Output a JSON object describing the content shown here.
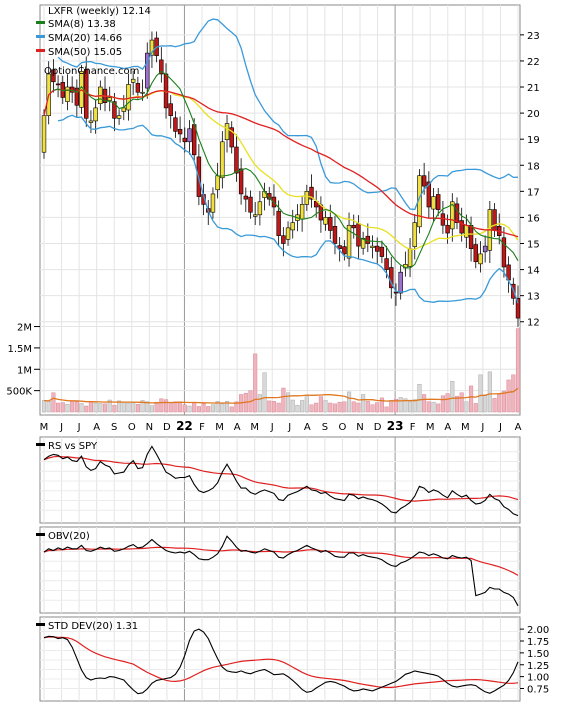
{
  "chart_data": [
    {
      "type": "candlestick",
      "title": "LXFR (weekly) 12.14",
      "watermark": "OptionChance.com",
      "legend_placement": "top-left",
      "legend": [
        {
          "label": "SMA(8) 13.38",
          "color": "#1a7f1a"
        },
        {
          "label": "SMA(20) 14.66",
          "color": "#3a9ad9"
        },
        {
          "label": "SMA(50) 15.05",
          "color": "#e02020"
        }
      ],
      "y_range": [
        11.3,
        23.8
      ],
      "y_ticks": [
        "12",
        "13",
        "14",
        "15",
        "16",
        "17",
        "18",
        "19",
        "20",
        "21",
        "22",
        "23"
      ],
      "volume_ticks": [
        "500K",
        "1M",
        "1.5M",
        "2M"
      ],
      "volume_range": [
        0,
        2200000
      ],
      "x_ticks": [
        "M",
        "J",
        "J",
        "A",
        "S",
        "O",
        "N",
        "D",
        "22",
        "F",
        "M",
        "A",
        "M",
        "J",
        "J",
        "A",
        "S",
        "O",
        "N",
        "D",
        "23",
        "F",
        "M",
        "A",
        "M",
        "J",
        "J",
        "A"
      ],
      "bollinger_color": "#3a9ad9",
      "sma8_color": "#1a7f1a",
      "sma20_color": "#e8e020",
      "sma50_color": "#e02020",
      "volume_avg_color": "#e07820",
      "up_color": "#f0e040",
      "down_color": "#c01818",
      "alt_up_color": "#a070d0",
      "close_series": [
        19.9,
        21.5,
        21.2,
        21.1,
        20.6,
        21.0,
        20.8,
        20.3,
        21.6,
        19.8,
        19.7,
        20.2,
        21.0,
        20.4,
        20.6,
        19.8,
        19.9,
        20.2,
        21.1,
        21.3,
        20.8,
        20.8,
        22.3,
        22.8,
        22.2,
        21.5,
        20.2,
        19.9,
        19.3,
        19.2,
        18.9,
        19.4,
        18.4,
        16.8,
        16.5,
        16.2,
        16.9,
        17.6,
        18.9,
        19.6,
        18.7,
        17.7,
        16.9,
        16.7,
        16.2,
        16.1,
        16.6,
        17.0,
        16.7,
        16.4,
        15.3,
        15.0,
        15.6,
        15.8,
        16.1,
        16.5,
        17.0,
        16.7,
        16.4,
        15.9,
        16.0,
        15.5,
        15.0,
        14.8,
        14.6,
        15.7,
        15.6,
        14.9,
        15.2,
        15.0,
        14.9,
        14.7,
        14.5,
        14.0,
        13.3,
        13.1,
        13.9,
        14.2,
        14.8,
        15.8,
        17.6,
        17.2,
        16.4,
        16.8,
        16.3,
        15.7,
        15.4,
        16.6,
        15.8,
        15.4,
        15.7,
        14.8,
        14.3,
        14.6,
        14.9,
        16.3,
        15.5,
        15.3,
        14.1,
        13.6,
        12.9,
        12.14
      ],
      "volume_series": [
        0.27,
        0.25,
        0.45,
        0.21,
        0.22,
        0.18,
        0.26,
        0.24,
        0.2,
        0.14,
        0.24,
        0.21,
        0.2,
        0.19,
        0.28,
        0.16,
        0.26,
        0.23,
        0.21,
        0.22,
        0.18,
        0.27,
        0.24,
        0.15,
        0.23,
        0.31,
        0.29,
        0.22,
        0.24,
        0.24,
        0.17,
        0.14,
        0.23,
        0.13,
        0.19,
        0.13,
        0.17,
        0.25,
        0.19,
        0.25,
        0.12,
        0.24,
        0.41,
        0.44,
        0.5,
        1.36,
        0.41,
        0.92,
        0.26,
        0.25,
        0.21,
        0.56,
        0.45,
        0.28,
        0.16,
        0.27,
        0.39,
        0.17,
        0.21,
        0.36,
        0.27,
        0.21,
        0.19,
        0.23,
        0.24,
        0.47,
        0.24,
        0.21,
        0.41,
        0.25,
        0.17,
        0.22,
        0.33,
        0.12,
        0.27,
        0.3,
        0.34,
        0.31,
        0.24,
        0.29,
        0.65,
        0.41,
        0.24,
        0.23,
        0.19,
        0.38,
        0.43,
        0.72,
        0.37,
        0.45,
        0.24,
        0.61,
        0.2,
        0.87,
        0.38,
        0.94,
        0.32,
        0.41,
        0.49,
        0.75,
        0.87,
        1.95
      ]
    },
    {
      "type": "line",
      "title": "RS vs SPY",
      "series": [
        {
          "values": [
            0.72,
            0.76,
            0.78,
            0.77,
            0.73,
            0.75,
            0.71,
            0.7,
            0.76,
            0.64,
            0.6,
            0.62,
            0.7,
            0.66,
            0.64,
            0.56,
            0.57,
            0.58,
            0.66,
            0.71,
            0.62,
            0.63,
            0.78,
            0.87,
            0.78,
            0.68,
            0.58,
            0.55,
            0.51,
            0.52,
            0.52,
            0.54,
            0.44,
            0.37,
            0.35,
            0.37,
            0.4,
            0.46,
            0.58,
            0.67,
            0.58,
            0.48,
            0.4,
            0.4,
            0.35,
            0.33,
            0.36,
            0.38,
            0.36,
            0.34,
            0.27,
            0.26,
            0.32,
            0.34,
            0.36,
            0.39,
            0.42,
            0.38,
            0.37,
            0.34,
            0.35,
            0.31,
            0.28,
            0.27,
            0.26,
            0.33,
            0.32,
            0.28,
            0.3,
            0.28,
            0.27,
            0.25,
            0.22,
            0.18,
            0.13,
            0.12,
            0.17,
            0.2,
            0.24,
            0.31,
            0.42,
            0.4,
            0.35,
            0.38,
            0.36,
            0.32,
            0.29,
            0.37,
            0.33,
            0.3,
            0.32,
            0.26,
            0.22,
            0.23,
            0.26,
            0.33,
            0.28,
            0.26,
            0.19,
            0.16,
            0.11,
            0.09
          ],
          "color": "#000000"
        },
        {
          "values": "sma",
          "color": "#e02020"
        }
      ]
    },
    {
      "type": "line",
      "title": "OBV(20)",
      "series": [
        {
          "values": [
            0.56,
            0.6,
            0.58,
            0.61,
            0.59,
            0.62,
            0.6,
            0.6,
            0.64,
            0.58,
            0.57,
            0.59,
            0.62,
            0.6,
            0.61,
            0.57,
            0.58,
            0.6,
            0.63,
            0.65,
            0.61,
            0.62,
            0.66,
            0.71,
            0.66,
            0.62,
            0.58,
            0.56,
            0.55,
            0.56,
            0.55,
            0.57,
            0.53,
            0.48,
            0.47,
            0.47,
            0.5,
            0.54,
            0.63,
            0.75,
            0.69,
            0.62,
            0.57,
            0.58,
            0.56,
            0.55,
            0.57,
            0.6,
            0.58,
            0.56,
            0.5,
            0.49,
            0.53,
            0.56,
            0.58,
            0.61,
            0.64,
            0.61,
            0.59,
            0.56,
            0.58,
            0.55,
            0.51,
            0.5,
            0.5,
            0.55,
            0.55,
            0.51,
            0.53,
            0.51,
            0.5,
            0.49,
            0.47,
            0.43,
            0.4,
            0.39,
            0.43,
            0.45,
            0.48,
            0.52,
            0.56,
            0.55,
            0.52,
            0.54,
            0.52,
            0.49,
            0.48,
            0.52,
            0.5,
            0.49,
            0.5,
            0.46,
            0.04,
            0.06,
            0.08,
            0.14,
            0.12,
            0.12,
            0.08,
            0.06,
            0.02,
            -0.08
          ],
          "color": "#000000"
        },
        {
          "values": "sma",
          "color": "#e02020"
        }
      ]
    },
    {
      "type": "line",
      "title": "STD DEV(20) 1.31",
      "y_range": [
        0.55,
        2.15
      ],
      "y_ticks": [
        "0.75",
        "1.00",
        "1.25",
        "1.50",
        "1.75",
        "2.00"
      ],
      "series": [
        {
          "values": [
            1.82,
            1.85,
            1.84,
            1.8,
            1.82,
            1.78,
            1.62,
            1.38,
            1.14,
            0.98,
            0.93,
            0.96,
            0.97,
            0.96,
            1.0,
            0.99,
            0.96,
            0.93,
            0.82,
            0.72,
            0.64,
            0.66,
            0.74,
            0.86,
            0.92,
            0.94,
            0.96,
            0.98,
            1.05,
            1.2,
            1.45,
            1.76,
            1.96,
            2.0,
            1.94,
            1.8,
            1.58,
            1.38,
            1.2,
            1.12,
            1.1,
            1.09,
            1.12,
            1.08,
            1.06,
            1.1,
            1.13,
            1.15,
            1.1,
            1.04,
            1.05,
            1.06,
            1.0,
            0.92,
            0.83,
            0.73,
            0.67,
            0.69,
            0.76,
            0.82,
            0.88,
            0.9,
            0.88,
            0.84,
            0.8,
            0.74,
            0.7,
            0.71,
            0.74,
            0.72,
            0.7,
            0.74,
            0.78,
            0.82,
            0.86,
            0.9,
            0.97,
            1.05,
            1.08,
            1.12,
            1.1,
            1.08,
            1.06,
            1.04,
            1.01,
            0.94,
            0.86,
            0.8,
            0.78,
            0.8,
            0.82,
            0.83,
            0.81,
            0.74,
            0.68,
            0.65,
            0.7,
            0.76,
            0.82,
            0.92,
            1.08,
            1.31
          ],
          "color": "#000000"
        },
        {
          "values": "sma",
          "color": "#e02020"
        }
      ]
    }
  ]
}
